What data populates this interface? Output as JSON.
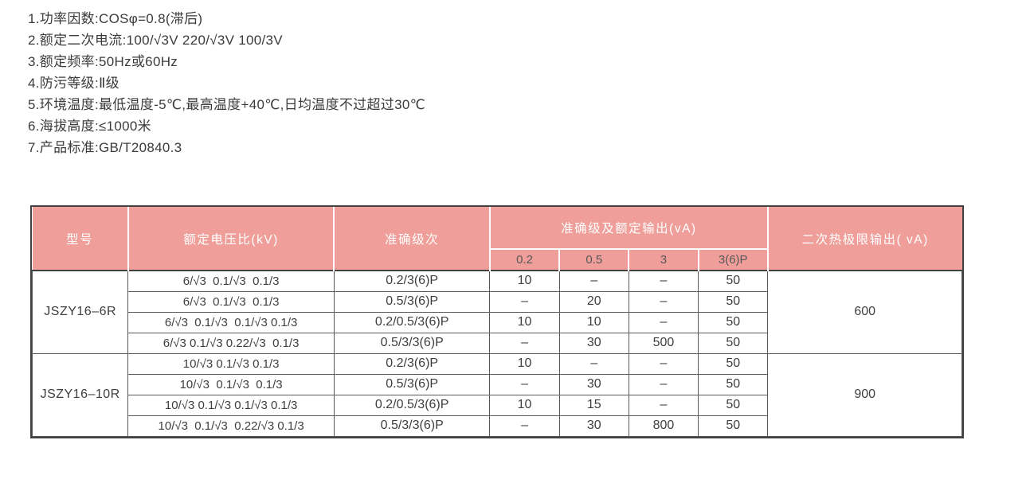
{
  "specs": [
    "1.功率因数:COSφ=0.8(滞后)",
    "2.额定二次电流:100/√3V 220/√3V 100/3V",
    "3.额定频率:50Hz或60Hz",
    "4.防污等级:Ⅱ级",
    "5.环境温度:最低温度-5℃,最高温度+40℃,日均温度不过超过30℃",
    "6.海拔高度:≤1000米",
    "7.产品标准:GB/T20840.3"
  ],
  "table": {
    "header": {
      "model": "型号",
      "ratio": "额定电压比(kV)",
      "accuracy": "准确级次",
      "output_group": "准确级及额定输出(vA)",
      "sub": [
        "0.2",
        "0.5",
        "3",
        "3(6)P"
      ],
      "thermal": "二次热极限输出( vA)"
    },
    "groups": [
      {
        "model": "JSZY16–6R",
        "limit": "600",
        "rows": [
          {
            "ratio": "6/√3  0.1/√3  0.1/3",
            "accuracy": "0.2/3(6)P",
            "values": [
              "10",
              "–",
              "–",
              "50"
            ]
          },
          {
            "ratio": "6/√3  0.1/√3  0.1/3",
            "accuracy": "0.5/3(6)P",
            "values": [
              "–",
              "20",
              "–",
              "50"
            ]
          },
          {
            "ratio": "6/√3  0.1/√3  0.1/√3 0.1/3",
            "accuracy": "0.2/0.5/3(6)P",
            "values": [
              "10",
              "10",
              "–",
              "50"
            ]
          },
          {
            "ratio": "6/√3 0.1/√3 0.22/√3  0.1/3",
            "accuracy": "0.5/3/3(6)P",
            "values": [
              "–",
              "30",
              "500",
              "50"
            ]
          }
        ]
      },
      {
        "model": "JSZY16–10R",
        "limit": "900",
        "rows": [
          {
            "ratio": "10/√3 0.1/√3 0.1/3",
            "accuracy": "0.2/3(6)P",
            "values": [
              "10",
              "–",
              "–",
              "50"
            ]
          },
          {
            "ratio": "10/√3  0.1/√3  0.1/3",
            "accuracy": "0.5/3(6)P",
            "values": [
              "–",
              "30",
              "–",
              "50"
            ]
          },
          {
            "ratio": "10/√3 0.1/√3 0.1/√3 0.1/3",
            "accuracy": "0.2/0.5/3(6)P",
            "values": [
              "10",
              "15",
              "–",
              "50"
            ]
          },
          {
            "ratio": "10/√3  0.1/√3  0.22/√3 0.1/3",
            "accuracy": "0.5/3/3(6)P",
            "values": [
              "–",
              "30",
              "800",
              "50"
            ]
          }
        ]
      }
    ]
  },
  "colors": {
    "header_bg": "#ef9e99",
    "header_text": "#ffffff",
    "subheader_text": "#57585a",
    "body_text": "#3e3e40",
    "outer_border": "#414141",
    "cell_border": "#59595b"
  }
}
